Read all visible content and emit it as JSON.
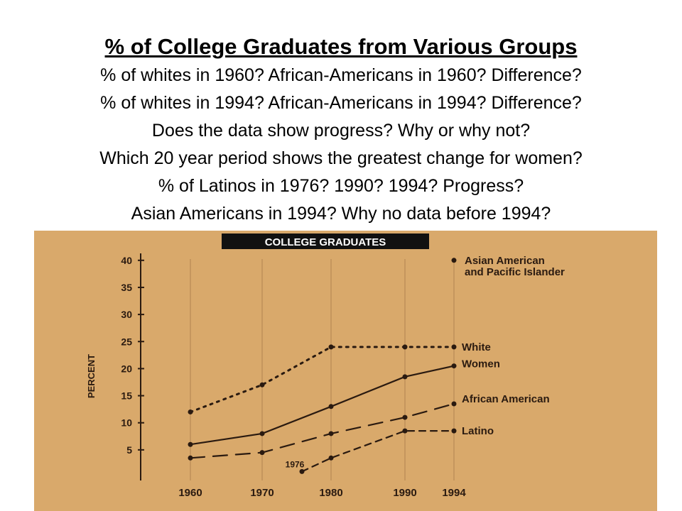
{
  "slide": {
    "title": "% of College Graduates from Various Groups",
    "questions": [
      "% of whites in 1960? African-Americans in 1960? Difference?",
      "% of whites in 1994? African-Americans in 1994? Difference?",
      "Does the data show progress? Why or why not?",
      "Which 20 year period shows the greatest change for women?",
      "% of Latinos in 1976? 1990? 1994? Progress?",
      "Asian Americans in 1994? Why no data before 1994?"
    ]
  },
  "colors": {
    "background": "#ffffff",
    "photo_background": "#d9a96b",
    "title_band": "#111111",
    "ink": "#2a1a10"
  },
  "chart_data": {
    "type": "line",
    "title": "COLLEGE GRADUATES",
    "ylabel": "PERCENT",
    "xlabel": "",
    "x": [
      1960,
      1970,
      1980,
      1990,
      1994
    ],
    "x_tick_labels": [
      "1960",
      "1970",
      "1980",
      "1990",
      "1994"
    ],
    "ylim": [
      0,
      42
    ],
    "y_ticks": [
      5,
      10,
      15,
      20,
      25,
      30,
      35,
      40
    ],
    "grid": true,
    "annotation": "1976",
    "series": [
      {
        "name": "White",
        "style": "dotted",
        "x": [
          1960,
          1970,
          1980,
          1990,
          1994
        ],
        "y": [
          12,
          17,
          24,
          24,
          24
        ]
      },
      {
        "name": "Women",
        "style": "solid",
        "x": [
          1960,
          1970,
          1980,
          1990,
          1994
        ],
        "y": [
          6,
          8,
          13,
          18.5,
          20.5
        ]
      },
      {
        "name": "African American",
        "style": "dashed",
        "x": [
          1960,
          1970,
          1980,
          1990,
          1994
        ],
        "y": [
          3.5,
          4.5,
          8,
          11,
          13.5
        ]
      },
      {
        "name": "Latino",
        "style": "short-dash",
        "x": [
          1976,
          1980,
          1990,
          1994
        ],
        "y": [
          1,
          3.5,
          8.5,
          8.5
        ]
      },
      {
        "name": "Asian American and Pacific Islander",
        "style": "point",
        "x": [
          1994
        ],
        "y": [
          40
        ]
      }
    ]
  }
}
